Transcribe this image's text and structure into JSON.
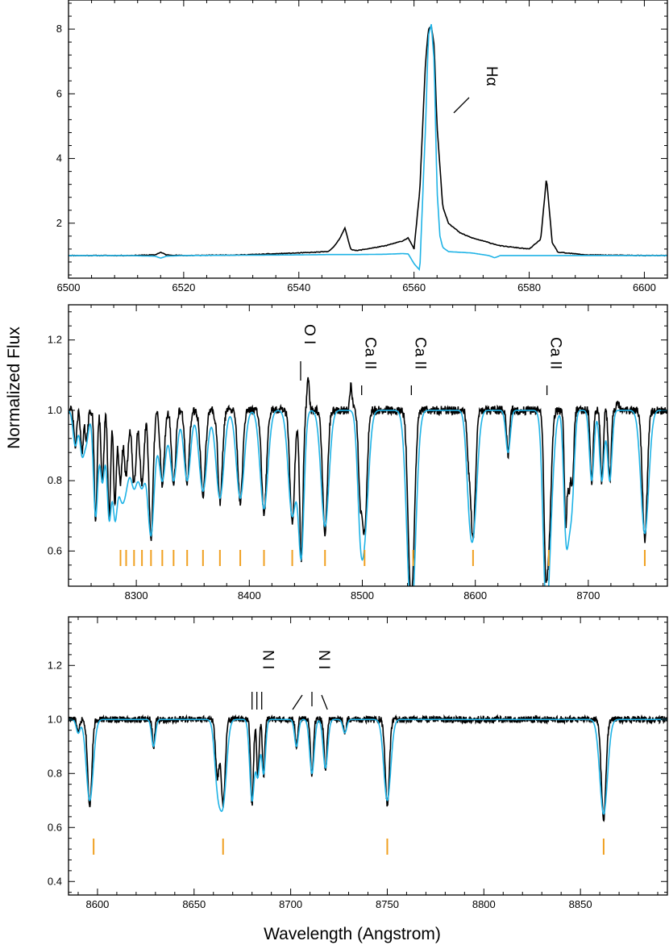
{
  "figure": {
    "ylabel": "Normalized Flux",
    "xlabel": "Wavelength (Angstrom)"
  },
  "colors": {
    "observed": "#000000",
    "model": "#1fb3e6",
    "markers": "#f0a020",
    "axes": "#000000"
  },
  "chart_data": [
    {
      "type": "line",
      "xlim": [
        6500,
        6604
      ],
      "ylim": [
        0.3,
        8.9
      ],
      "xticks": [
        6500,
        6520,
        6540,
        6560,
        6580,
        6600
      ],
      "yticks": [
        2,
        4,
        6,
        8
      ],
      "series": [
        {
          "role": "observed",
          "x": [
            6500,
            6510,
            6515,
            6516,
            6517,
            6520,
            6530,
            6540,
            6545,
            6546,
            6547,
            6548,
            6549,
            6550,
            6555,
            6558,
            6559,
            6560,
            6561,
            6562,
            6562.5,
            6563,
            6563.5,
            6564,
            6565,
            6566,
            6568,
            6570,
            6575,
            6580,
            6582,
            6583,
            6584,
            6585,
            6590,
            6600,
            6604
          ],
          "y": [
            1.0,
            1.0,
            1.02,
            1.1,
            1.02,
            1.0,
            1.02,
            1.08,
            1.12,
            1.25,
            1.5,
            1.85,
            1.2,
            1.15,
            1.3,
            1.45,
            1.55,
            1.2,
            3.0,
            7.0,
            8.0,
            8.1,
            7.5,
            5.0,
            2.5,
            2.0,
            1.7,
            1.55,
            1.3,
            1.2,
            1.5,
            3.4,
            1.4,
            1.1,
            1.02,
            1.0,
            1.0
          ]
        },
        {
          "role": "model",
          "x": [
            6500,
            6510,
            6515,
            6516,
            6517,
            6520,
            6530,
            6540,
            6545,
            6550,
            6555,
            6558,
            6559,
            6560,
            6561,
            6562,
            6562.5,
            6563,
            6563.5,
            6564,
            6564.5,
            6565,
            6566,
            6568,
            6570,
            6573,
            6574,
            6575,
            6580,
            6590,
            6600,
            6604
          ],
          "y": [
            1.0,
            1.0,
            0.98,
            0.92,
            0.98,
            1.0,
            1.01,
            1.02,
            1.03,
            1.03,
            1.04,
            1.06,
            1.05,
            0.75,
            0.55,
            5.0,
            7.8,
            8.15,
            7.0,
            3.0,
            1.6,
            1.25,
            1.12,
            1.1,
            1.08,
            1.0,
            0.93,
            1.0,
            1.0,
            1.0,
            1.0,
            1.0
          ]
        }
      ],
      "annotations": [
        {
          "text": "Hα",
          "x": 6571,
          "y": 5.8
        }
      ]
    },
    {
      "type": "line",
      "xlim": [
        8240,
        8770
      ],
      "ylim": [
        0.5,
        1.3
      ],
      "xticks": [
        8300,
        8400,
        8500,
        8600,
        8700
      ],
      "yticks": [
        0.6,
        0.8,
        1.0,
        1.2
      ],
      "absorption_lines": [
        {
          "c": 8246,
          "d": 0.1,
          "w": 2.0
        },
        {
          "c": 8252,
          "d": 0.12,
          "w": 2.0
        },
        {
          "c": 8256,
          "d": 0.08,
          "w": 2.0
        },
        {
          "c": 8264,
          "d": 0.3,
          "w": 2.0
        },
        {
          "c": 8270,
          "d": 0.2,
          "w": 2.0
        },
        {
          "c": 8276,
          "d": 0.3,
          "w": 2.0
        },
        {
          "c": 8281,
          "d": 0.25,
          "w": 2.0
        },
        {
          "c": 8286,
          "d": 0.2,
          "w": 3.0
        },
        {
          "c": 8291,
          "d": 0.17,
          "w": 3.0
        },
        {
          "c": 8298,
          "d": 0.2,
          "w": 3.0
        },
        {
          "c": 8305,
          "d": 0.2,
          "w": 3.0
        },
        {
          "c": 8313,
          "d": 0.35,
          "w": 3.0
        },
        {
          "c": 8323,
          "d": 0.2,
          "w": 3.0
        },
        {
          "c": 8333,
          "d": 0.2,
          "w": 3.0
        },
        {
          "c": 8345,
          "d": 0.2,
          "w": 3.0
        },
        {
          "c": 8359,
          "d": 0.23,
          "w": 3.5
        },
        {
          "c": 8374,
          "d": 0.25,
          "w": 3.5
        },
        {
          "c": 8392,
          "d": 0.25,
          "w": 3.5
        },
        {
          "c": 8413,
          "d": 0.28,
          "w": 3.5
        },
        {
          "c": 8438,
          "d": 0.3,
          "w": 3.5
        },
        {
          "c": 8446,
          "d": 0.4,
          "w": 2.5
        },
        {
          "c": 8467,
          "d": 0.33,
          "w": 3.5
        },
        {
          "c": 8498,
          "d": 0.2,
          "w": 2.5
        },
        {
          "c": 8502,
          "d": 0.33,
          "w": 3.5
        },
        {
          "c": 8542,
          "d": 0.35,
          "w": 3.5
        },
        {
          "c": 8545,
          "d": 0.3,
          "w": 3.5
        },
        {
          "c": 8594,
          "d": 0.1,
          "w": 2.5
        },
        {
          "c": 8598,
          "d": 0.34,
          "w": 3.5
        },
        {
          "c": 8629,
          "d": 0.12,
          "w": 2.0
        },
        {
          "c": 8662,
          "d": 0.3,
          "w": 2.5
        },
        {
          "c": 8665,
          "d": 0.35,
          "w": 3.5
        },
        {
          "c": 8680,
          "d": 0.3,
          "w": 2.0
        },
        {
          "c": 8683,
          "d": 0.2,
          "w": 2.0
        },
        {
          "c": 8686,
          "d": 0.2,
          "w": 2.0
        },
        {
          "c": 8703,
          "d": 0.2,
          "w": 2.0
        },
        {
          "c": 8712,
          "d": 0.2,
          "w": 2.0
        },
        {
          "c": 8719,
          "d": 0.2,
          "w": 2.0
        },
        {
          "c": 8750,
          "d": 0.35,
          "w": 3.5
        }
      ],
      "emission_features": [
        {
          "c": 8288,
          "h": 0.05
        },
        {
          "c": 8372,
          "h": 0.03
        },
        {
          "c": 8452,
          "h": 0.1
        },
        {
          "c": 8490,
          "h": 0.07
        },
        {
          "c": 8726,
          "h": 0.03
        }
      ],
      "paschen_markers": [
        8286,
        8291,
        8298,
        8305,
        8313,
        8323,
        8333,
        8345,
        8359,
        8374,
        8392,
        8413,
        8438,
        8467,
        8502,
        8545,
        8598,
        8665,
        8750
      ],
      "annotations": [
        {
          "text": "O I",
          "x": 8444
        },
        {
          "text": "Ca II",
          "x": 8498
        },
        {
          "text": "Ca II",
          "x": 8542
        },
        {
          "text": "Ca II",
          "x": 8662
        }
      ]
    },
    {
      "type": "line",
      "xlim": [
        8585,
        8895
      ],
      "ylim": [
        0.35,
        1.38
      ],
      "xticks": [
        8600,
        8650,
        8700,
        8750,
        8800,
        8850
      ],
      "yticks": [
        0.4,
        0.6,
        0.8,
        1.0,
        1.2
      ],
      "absorption_lines": [
        {
          "c": 8596,
          "d": 0.3,
          "w": 1.8
        },
        {
          "c": 8590,
          "d": 0.05,
          "w": 1.0
        },
        {
          "c": 8629,
          "d": 0.1,
          "w": 1.0
        },
        {
          "c": 8662,
          "d": 0.2,
          "w": 1.5
        },
        {
          "c": 8665,
          "d": 0.3,
          "w": 1.8
        },
        {
          "c": 8680,
          "d": 0.3,
          "w": 1.2
        },
        {
          "c": 8683,
          "d": 0.2,
          "w": 1.0
        },
        {
          "c": 8686,
          "d": 0.2,
          "w": 1.0
        },
        {
          "c": 8703,
          "d": 0.1,
          "w": 1.0
        },
        {
          "c": 8711,
          "d": 0.2,
          "w": 1.2
        },
        {
          "c": 8718,
          "d": 0.18,
          "w": 1.2
        },
        {
          "c": 8728,
          "d": 0.05,
          "w": 1.0
        },
        {
          "c": 8750,
          "d": 0.3,
          "w": 1.8
        },
        {
          "c": 8862,
          "d": 0.35,
          "w": 2.0
        }
      ],
      "paschen_markers": [
        8598,
        8665,
        8750,
        8862
      ],
      "annotations": [
        {
          "text": "N I",
          "x": 8682
        },
        {
          "text": "N I",
          "x": 8711
        }
      ]
    }
  ]
}
